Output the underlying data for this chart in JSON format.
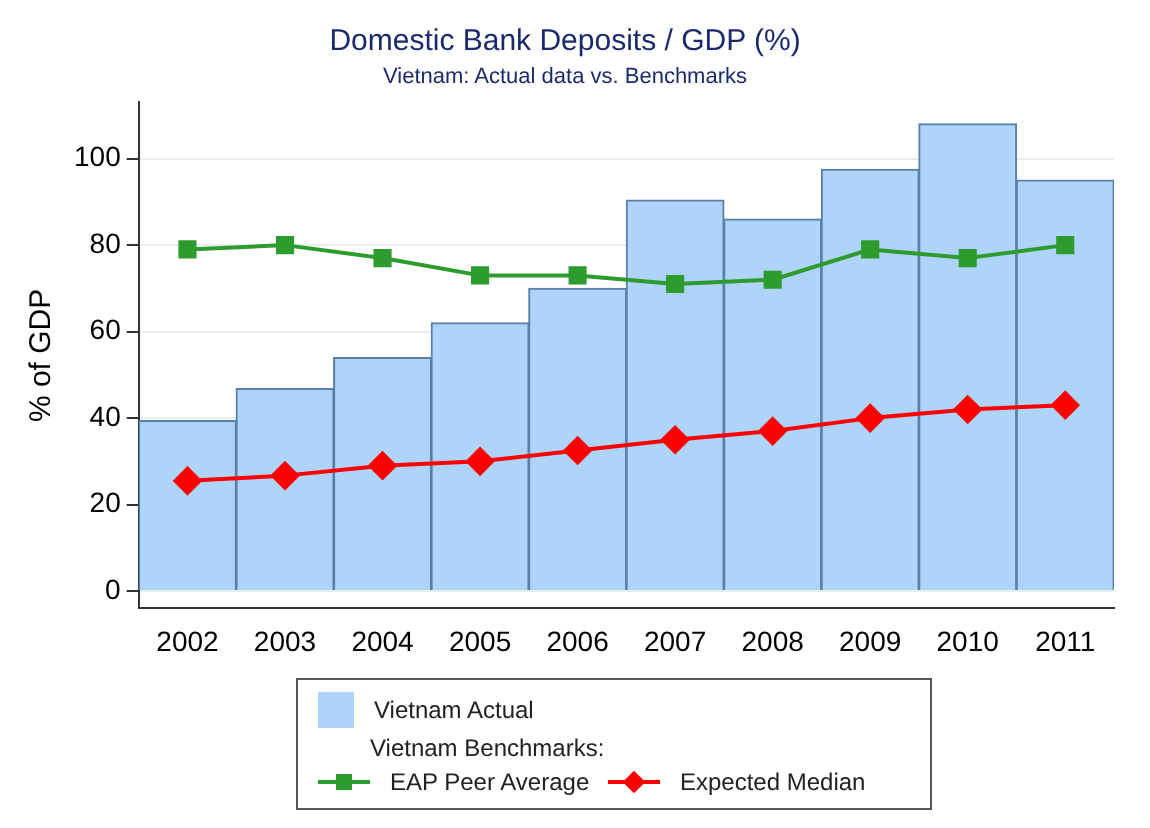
{
  "chart_data": {
    "type": "bar",
    "title": "Domestic Bank Deposits / GDP (%)",
    "subtitle": "Vietnam: Actual data vs. Benchmarks",
    "ylabel": "% of GDP",
    "legend_title": "Vietnam Benchmarks:",
    "categories": [
      "2002",
      "2003",
      "2004",
      "2005",
      "2006",
      "2007",
      "2008",
      "2009",
      "2010",
      "2011"
    ],
    "series": [
      {
        "name": "Vietnam Actual",
        "color": "#aed4fa",
        "values": [
          39.4,
          46.8,
          54,
          62,
          70,
          90.4,
          86,
          97.5,
          108,
          95
        ]
      },
      {
        "name": "EAP Peer Average",
        "type": "line",
        "marker": "square",
        "color": "#2e9b2e",
        "values": [
          79,
          80,
          77,
          73,
          73,
          71,
          72,
          79,
          77,
          80
        ]
      },
      {
        "name": "Expected Median",
        "type": "line",
        "marker": "diamond",
        "color": "#ff0000",
        "values": [
          25.5,
          26.7,
          29,
          30,
          32.5,
          35,
          37,
          40,
          42,
          43
        ]
      }
    ],
    "ylim": [
      -4,
      113
    ],
    "yticks": [
      0,
      20,
      40,
      60,
      80,
      100
    ],
    "grid": "y",
    "legend": "bottom"
  }
}
